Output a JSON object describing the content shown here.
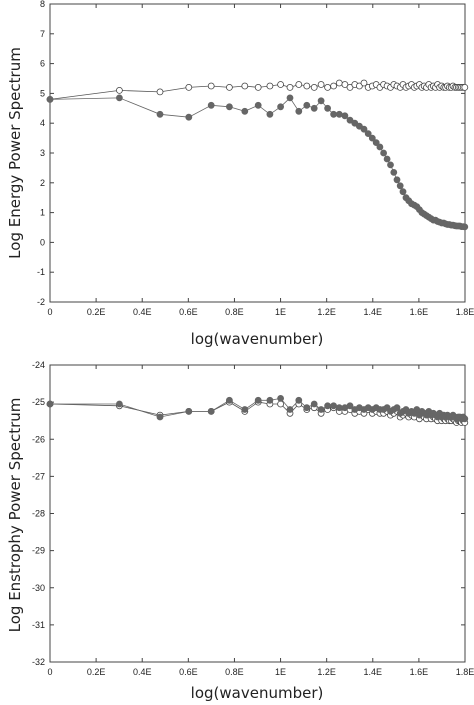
{
  "chart_data": [
    {
      "type": "scatter",
      "title": "",
      "xlabel": "log(wavenumber)",
      "ylabel": "Log Energy Power Spectrum",
      "xlim": [
        0,
        1.8
      ],
      "ylim": [
        -2,
        8
      ],
      "xticks": [
        0,
        0.2,
        0.4,
        0.6,
        0.8,
        1.0,
        1.2,
        1.4,
        1.6,
        1.8
      ],
      "xtick_labels": [
        "0",
        "0.2E",
        "0.4E",
        "0.6E",
        "0.8E",
        "1E",
        "1.2E",
        "1.4E",
        "1.6E",
        "1.8E"
      ],
      "yticks": [
        -2,
        -1,
        0,
        1,
        2,
        3,
        4,
        5,
        6,
        7,
        8
      ],
      "ytick_labels": [
        "-2",
        "-1",
        "0",
        "1",
        "2",
        "3",
        "4",
        "5",
        "6",
        "7",
        "8"
      ],
      "grid": false,
      "legend": "none",
      "series": [
        {
          "marker": "open-circle",
          "color": "#555555",
          "x": [
            0,
            0.301,
            0.477,
            0.602,
            0.699,
            0.778,
            0.845,
            0.903,
            0.954,
            1.0,
            1.041,
            1.079,
            1.114,
            1.146,
            1.176,
            1.204,
            1.23,
            1.255,
            1.279,
            1.301,
            1.322,
            1.342,
            1.362,
            1.38,
            1.398,
            1.415,
            1.431,
            1.447,
            1.462,
            1.477,
            1.491,
            1.505,
            1.519,
            1.531,
            1.544,
            1.556,
            1.568,
            1.58,
            1.591,
            1.602,
            1.613,
            1.623,
            1.633,
            1.643,
            1.653,
            1.663,
            1.672,
            1.681,
            1.69,
            1.699,
            1.708,
            1.716,
            1.724,
            1.732,
            1.74,
            1.748,
            1.756,
            1.763,
            1.771,
            1.778,
            1.785,
            1.792,
            1.799
          ],
          "y": [
            4.8,
            5.1,
            5.05,
            5.2,
            5.25,
            5.2,
            5.25,
            5.2,
            5.25,
            5.3,
            5.2,
            5.3,
            5.25,
            5.2,
            5.3,
            5.2,
            5.25,
            5.35,
            5.3,
            5.2,
            5.3,
            5.25,
            5.35,
            5.2,
            5.25,
            5.3,
            5.2,
            5.3,
            5.25,
            5.2,
            5.3,
            5.25,
            5.2,
            5.3,
            5.2,
            5.25,
            5.3,
            5.2,
            5.25,
            5.3,
            5.2,
            5.25,
            5.2,
            5.3,
            5.2,
            5.25,
            5.2,
            5.3,
            5.2,
            5.25,
            5.2,
            5.2,
            5.25,
            5.2,
            5.2,
            5.25,
            5.2,
            5.2,
            5.2,
            5.2,
            5.2,
            5.2,
            5.2
          ]
        },
        {
          "marker": "filled-circle",
          "color": "#666666",
          "x": [
            0,
            0.301,
            0.477,
            0.602,
            0.699,
            0.778,
            0.845,
            0.903,
            0.954,
            1.0,
            1.041,
            1.079,
            1.114,
            1.146,
            1.176,
            1.204,
            1.23,
            1.255,
            1.279,
            1.301,
            1.322,
            1.342,
            1.362,
            1.38,
            1.398,
            1.415,
            1.431,
            1.447,
            1.462,
            1.477,
            1.491,
            1.505,
            1.519,
            1.531,
            1.544,
            1.556,
            1.568,
            1.58,
            1.591,
            1.602,
            1.613,
            1.623,
            1.633,
            1.643,
            1.653,
            1.663,
            1.672,
            1.681,
            1.69,
            1.699,
            1.708,
            1.716,
            1.724,
            1.732,
            1.74,
            1.748,
            1.756,
            1.763,
            1.771,
            1.778,
            1.785,
            1.792,
            1.799
          ],
          "y": [
            4.8,
            4.85,
            4.3,
            4.2,
            4.6,
            4.55,
            4.4,
            4.6,
            4.3,
            4.55,
            4.85,
            4.4,
            4.6,
            4.5,
            4.75,
            4.5,
            4.3,
            4.3,
            4.25,
            4.1,
            4.0,
            3.9,
            3.8,
            3.65,
            3.5,
            3.35,
            3.2,
            3.0,
            2.8,
            2.6,
            2.35,
            2.1,
            1.9,
            1.7,
            1.5,
            1.4,
            1.3,
            1.25,
            1.2,
            1.1,
            1.0,
            0.95,
            0.9,
            0.85,
            0.8,
            0.75,
            0.75,
            0.7,
            0.68,
            0.65,
            0.65,
            0.62,
            0.6,
            0.6,
            0.58,
            0.58,
            0.56,
            0.55,
            0.55,
            0.55,
            0.53,
            0.53,
            0.52
          ]
        }
      ]
    },
    {
      "type": "scatter",
      "title": "",
      "xlabel": "log(wavenumber)",
      "ylabel": "Log Enstrophy Power Spectrum",
      "xlim": [
        0,
        1.8
      ],
      "ylim": [
        -32,
        -24
      ],
      "xticks": [
        0,
        0.2,
        0.4,
        0.6,
        0.8,
        1.0,
        1.2,
        1.4,
        1.6,
        1.8
      ],
      "xtick_labels": [
        "0",
        "0.2E",
        "0.4E",
        "0.6E",
        "0.8E",
        "1E",
        "1.2E",
        "1.4E",
        "1.6E",
        "1.8E"
      ],
      "yticks": [
        -32,
        -31,
        -30,
        -29,
        -28,
        -27,
        -26,
        -25,
        -24
      ],
      "ytick_labels": [
        "-32",
        "-31",
        "-30",
        "-29",
        "-28",
        "-27",
        "-26",
        "-25",
        "-24"
      ],
      "grid": false,
      "legend": "none",
      "series": [
        {
          "marker": "open-circle",
          "color": "#555555",
          "x": [
            0,
            0.301,
            0.477,
            0.602,
            0.699,
            0.778,
            0.845,
            0.903,
            0.954,
            1.0,
            1.041,
            1.079,
            1.114,
            1.146,
            1.176,
            1.204,
            1.23,
            1.255,
            1.279,
            1.301,
            1.322,
            1.342,
            1.362,
            1.38,
            1.398,
            1.415,
            1.431,
            1.447,
            1.462,
            1.477,
            1.491,
            1.505,
            1.519,
            1.531,
            1.544,
            1.556,
            1.568,
            1.58,
            1.591,
            1.602,
            1.613,
            1.623,
            1.633,
            1.643,
            1.653,
            1.663,
            1.672,
            1.681,
            1.69,
            1.699,
            1.708,
            1.716,
            1.724,
            1.732,
            1.74,
            1.748,
            1.756,
            1.763,
            1.771,
            1.778,
            1.785,
            1.792,
            1.799
          ],
          "y": [
            -25.05,
            -25.1,
            -25.35,
            -25.25,
            -25.25,
            -25.0,
            -25.25,
            -25.0,
            -25.05,
            -25.05,
            -25.3,
            -25.05,
            -25.2,
            -25.15,
            -25.3,
            -25.2,
            -25.15,
            -25.25,
            -25.25,
            -25.2,
            -25.3,
            -25.25,
            -25.3,
            -25.2,
            -25.3,
            -25.25,
            -25.3,
            -25.3,
            -25.25,
            -25.35,
            -25.3,
            -25.25,
            -25.4,
            -25.35,
            -25.3,
            -25.4,
            -25.35,
            -25.4,
            -25.3,
            -25.45,
            -25.35,
            -25.4,
            -25.45,
            -25.35,
            -25.45,
            -25.4,
            -25.45,
            -25.5,
            -25.4,
            -25.5,
            -25.45,
            -25.5,
            -25.45,
            -25.5,
            -25.5,
            -25.45,
            -25.5,
            -25.55,
            -25.5,
            -25.5,
            -25.55,
            -25.5,
            -25.55
          ]
        },
        {
          "marker": "filled-circle",
          "color": "#666666",
          "x": [
            0,
            0.301,
            0.477,
            0.602,
            0.699,
            0.778,
            0.845,
            0.903,
            0.954,
            1.0,
            1.041,
            1.079,
            1.114,
            1.146,
            1.176,
            1.204,
            1.23,
            1.255,
            1.279,
            1.301,
            1.322,
            1.342,
            1.362,
            1.38,
            1.398,
            1.415,
            1.431,
            1.447,
            1.462,
            1.477,
            1.491,
            1.505,
            1.519,
            1.531,
            1.544,
            1.556,
            1.568,
            1.58,
            1.591,
            1.602,
            1.613,
            1.623,
            1.633,
            1.643,
            1.653,
            1.663,
            1.672,
            1.681,
            1.69,
            1.699,
            1.708,
            1.716,
            1.724,
            1.732,
            1.74,
            1.748,
            1.756,
            1.763,
            1.771,
            1.778,
            1.785,
            1.792,
            1.799
          ],
          "y": [
            -25.05,
            -25.05,
            -25.4,
            -25.25,
            -25.25,
            -24.95,
            -25.2,
            -24.95,
            -24.95,
            -24.9,
            -25.2,
            -24.95,
            -25.15,
            -25.05,
            -25.2,
            -25.1,
            -25.1,
            -25.15,
            -25.15,
            -25.1,
            -25.2,
            -25.15,
            -25.2,
            -25.15,
            -25.2,
            -25.15,
            -25.2,
            -25.2,
            -25.15,
            -25.25,
            -25.2,
            -25.15,
            -25.3,
            -25.25,
            -25.2,
            -25.3,
            -25.25,
            -25.3,
            -25.2,
            -25.35,
            -25.25,
            -25.3,
            -25.35,
            -25.25,
            -25.35,
            -25.3,
            -25.35,
            -25.4,
            -25.3,
            -25.4,
            -25.35,
            -25.4,
            -25.35,
            -25.4,
            -25.4,
            -25.35,
            -25.4,
            -25.45,
            -25.4,
            -25.4,
            -25.45,
            -25.4,
            -25.45
          ]
        }
      ]
    }
  ]
}
